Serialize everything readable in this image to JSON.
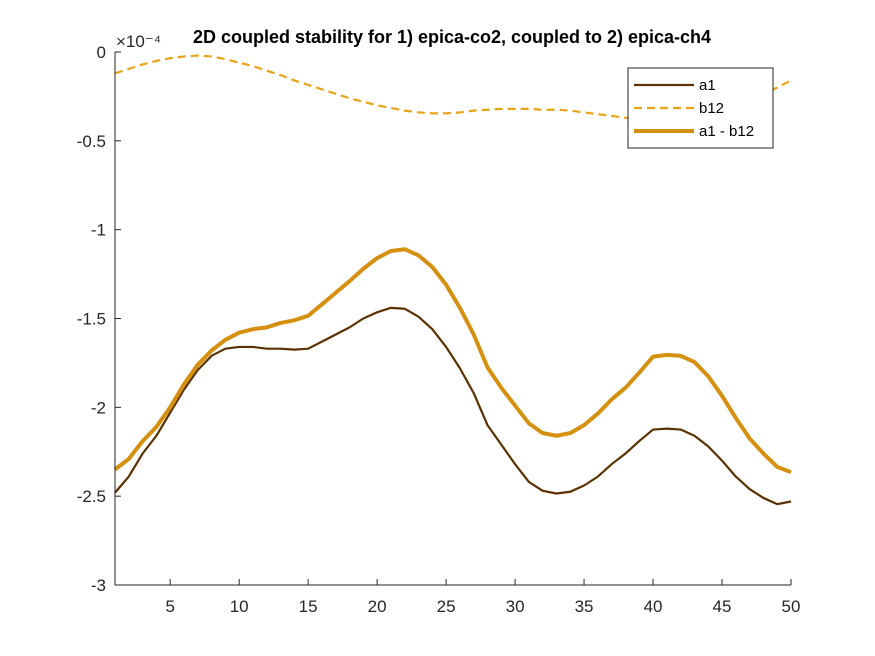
{
  "chart_data": {
    "type": "line",
    "title": "2D coupled stability for 1) epica-co2, coupled to 2) epica-ch4",
    "xlabel": "",
    "ylabel": "",
    "y_exponent_label": "×10⁻⁴",
    "xlim": [
      1,
      50
    ],
    "ylim": [
      -3,
      0
    ],
    "x_ticks": [
      5,
      10,
      15,
      20,
      25,
      30,
      35,
      40,
      45,
      50
    ],
    "y_ticks": [
      0,
      -0.5,
      -1,
      -1.5,
      -2,
      -2.5,
      -3
    ],
    "legend_position": "top-right",
    "x": [
      1,
      2,
      3,
      4,
      5,
      6,
      7,
      8,
      9,
      10,
      11,
      12,
      13,
      14,
      15,
      16,
      17,
      18,
      19,
      20,
      21,
      22,
      23,
      24,
      25,
      26,
      27,
      28,
      29,
      30,
      31,
      32,
      33,
      34,
      35,
      36,
      37,
      38,
      39,
      40,
      41,
      42,
      43,
      44,
      45,
      46,
      47,
      48,
      49,
      50
    ],
    "series": [
      {
        "name": "a1",
        "color": "#5a3200",
        "style": "solid",
        "width": 2.2,
        "values": [
          -2.48,
          -2.39,
          -2.26,
          -2.16,
          -2.03,
          -1.9,
          -1.79,
          -1.71,
          -1.67,
          -1.66,
          -1.66,
          -1.67,
          -1.67,
          -1.675,
          -1.67,
          -1.63,
          -1.59,
          -1.55,
          -1.5,
          -1.465,
          -1.44,
          -1.445,
          -1.49,
          -1.56,
          -1.66,
          -1.78,
          -1.92,
          -2.1,
          -2.21,
          -2.32,
          -2.42,
          -2.47,
          -2.485,
          -2.475,
          -2.44,
          -2.39,
          -2.32,
          -2.26,
          -2.19,
          -2.125,
          -2.12,
          -2.125,
          -2.16,
          -2.22,
          -2.3,
          -2.39,
          -2.46,
          -2.51,
          -2.545,
          -2.53
        ]
      },
      {
        "name": "b12",
        "color": "#e8a317",
        "style": "dashed",
        "width": 2.2,
        "values": [
          -0.12,
          -0.095,
          -0.07,
          -0.05,
          -0.035,
          -0.025,
          -0.02,
          -0.025,
          -0.04,
          -0.06,
          -0.08,
          -0.105,
          -0.13,
          -0.16,
          -0.185,
          -0.21,
          -0.235,
          -0.26,
          -0.28,
          -0.3,
          -0.315,
          -0.33,
          -0.34,
          -0.345,
          -0.345,
          -0.34,
          -0.33,
          -0.325,
          -0.32,
          -0.32,
          -0.32,
          -0.325,
          -0.325,
          -0.33,
          -0.34,
          -0.35,
          -0.36,
          -0.37,
          -0.385,
          -0.4,
          -0.415,
          -0.42,
          -0.42,
          -0.41,
          -0.38,
          -0.34,
          -0.29,
          -0.24,
          -0.2,
          -0.16
        ]
      },
      {
        "name": "a1 - b12",
        "color": "#d4900e",
        "style": "solid",
        "width": 4,
        "values": [
          -2.35,
          -2.29,
          -2.19,
          -2.11,
          -2.0,
          -1.87,
          -1.76,
          -1.68,
          -1.62,
          -1.58,
          -1.56,
          -1.55,
          -1.525,
          -1.51,
          -1.485,
          -1.42,
          -1.355,
          -1.29,
          -1.22,
          -1.16,
          -1.12,
          -1.11,
          -1.145,
          -1.21,
          -1.31,
          -1.44,
          -1.59,
          -1.775,
          -1.89,
          -1.99,
          -2.09,
          -2.145,
          -2.16,
          -2.145,
          -2.1,
          -2.035,
          -1.955,
          -1.89,
          -1.805,
          -1.715,
          -1.705,
          -1.71,
          -1.745,
          -1.825,
          -1.935,
          -2.06,
          -2.175,
          -2.26,
          -2.335,
          -2.365
        ]
      }
    ]
  }
}
